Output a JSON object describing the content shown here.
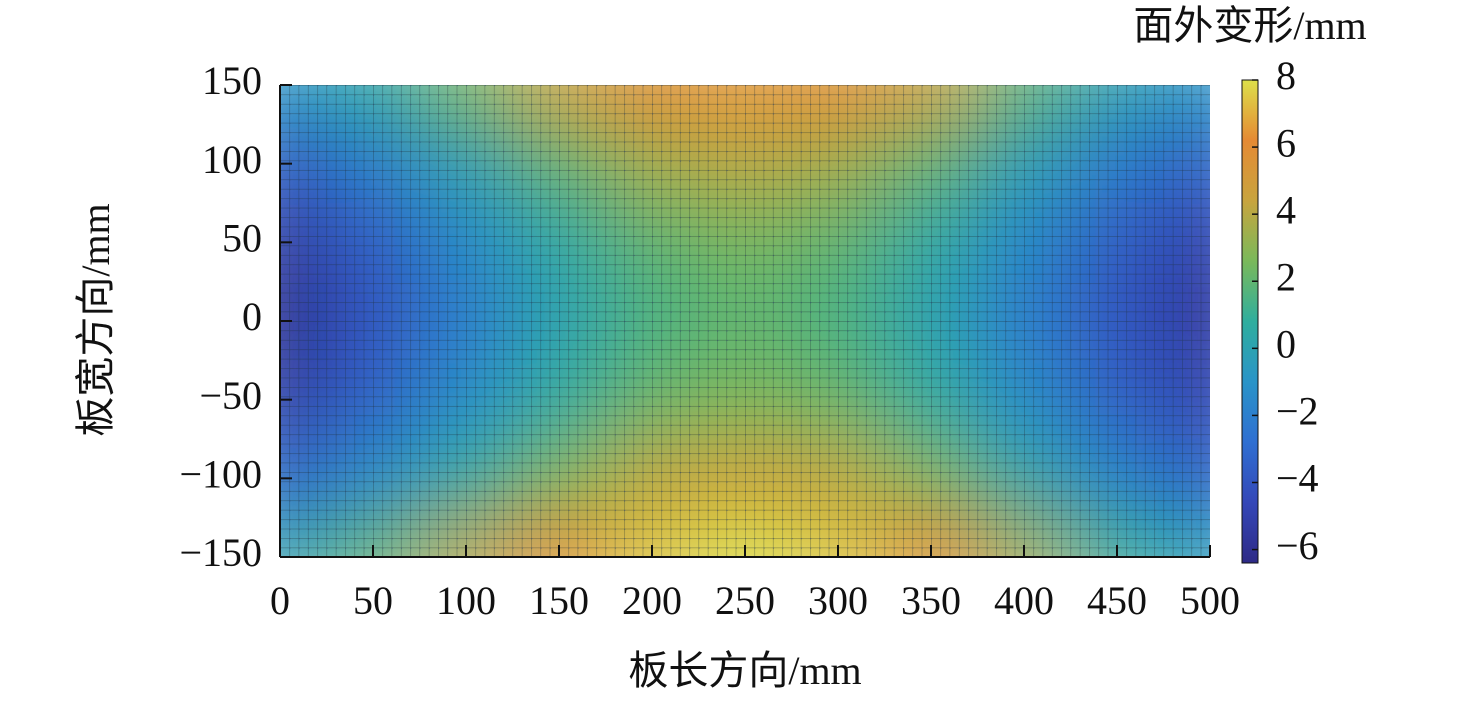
{
  "chart_data": {
    "type": "heatmap",
    "x_label": "板长方向/mm",
    "y_label": "板宽方向/mm",
    "colorbar_label": "面外变形/mm",
    "x": [
      0,
      50,
      100,
      150,
      200,
      250,
      300,
      350,
      400,
      450,
      500
    ],
    "y": [
      150,
      100,
      50,
      0,
      -50,
      -100,
      -150
    ],
    "values": [
      [
        -1,
        0.5,
        2.5,
        4.5,
        6,
        6.5,
        6,
        4.5,
        2,
        0,
        -1
      ],
      [
        -3.8,
        -2,
        0,
        2,
        3.5,
        4,
        3.5,
        2,
        -0.2,
        -2.2,
        -3.5
      ],
      [
        -5.4,
        -3.5,
        -1.5,
        0.5,
        2,
        2.5,
        2,
        0.5,
        -1.6,
        -3.6,
        -5
      ],
      [
        -6,
        -4,
        -2,
        0,
        1.5,
        2,
        1.5,
        0,
        -2,
        -4,
        -5.5
      ],
      [
        -5.3,
        -3.3,
        -1.3,
        0.7,
        2.2,
        2.7,
        2.2,
        0.7,
        -1.4,
        -3.4,
        -4.9
      ],
      [
        -3.3,
        -1.3,
        0.7,
        2.7,
        4.2,
        4.7,
        4.2,
        2.7,
        0.4,
        -1.8,
        -3.3
      ],
      [
        0,
        2,
        4,
        6,
        7.5,
        8,
        7.5,
        6,
        3.5,
        1,
        -0.5
      ]
    ],
    "xlim": [
      0,
      500
    ],
    "ylim": [
      -150,
      150
    ],
    "xticks": [
      0,
      50,
      100,
      150,
      200,
      250,
      300,
      350,
      400,
      450,
      500
    ],
    "yticks": [
      150,
      100,
      50,
      0,
      {
        "value": -50,
        "label": "−50"
      },
      {
        "value": -100,
        "label": "−100"
      },
      {
        "value": -150,
        "label": "−150"
      }
    ],
    "clim": [
      -6.4,
      8
    ],
    "cticks": [
      8,
      6,
      4,
      2,
      0,
      {
        "value": -2,
        "label": "−2"
      },
      {
        "value": -4,
        "label": "−4"
      },
      {
        "value": -6,
        "label": "−6"
      }
    ],
    "colormap": [
      "#2e2a86",
      "#3447b8",
      "#2f6fd2",
      "#2a94c8",
      "#2fae9e",
      "#7ab95a",
      "#c8a43e",
      "#e58a34",
      "#dde04a"
    ]
  }
}
